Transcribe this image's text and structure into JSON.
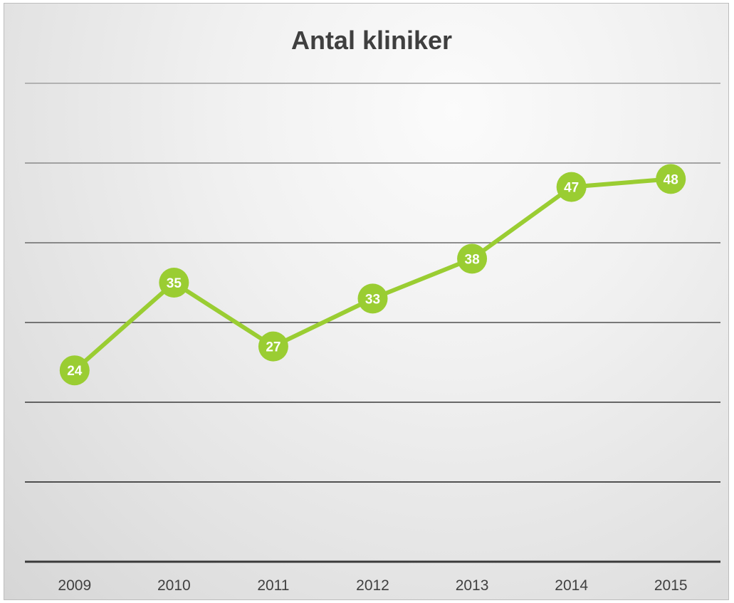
{
  "chart_data": {
    "type": "line",
    "title": "Antal kliniker",
    "xlabel": "",
    "ylabel": "",
    "categories": [
      "2009",
      "2010",
      "2011",
      "2012",
      "2013",
      "2014",
      "2015"
    ],
    "series": [
      {
        "values": [
          24,
          35,
          27,
          33,
          38,
          47,
          48
        ]
      }
    ],
    "ylim": [
      0,
      60
    ],
    "grid": true,
    "legend": "none",
    "colors": {
      "line": "#9ACD32",
      "marker": "#9ACD32",
      "label_text": "#FFFFFF"
    }
  }
}
